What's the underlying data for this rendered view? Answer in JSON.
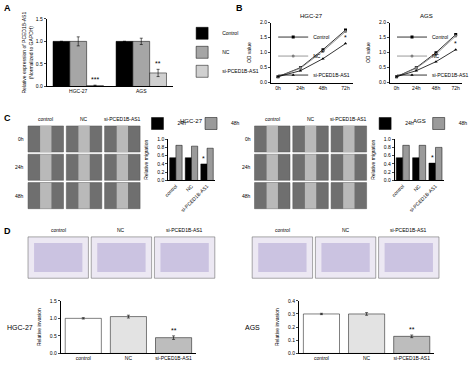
{
  "panel_labels": [
    "A",
    "B",
    "C",
    "D"
  ],
  "chart_data": [
    {
      "type": "bar",
      "categories": [
        "HGC-27",
        "AGS"
      ],
      "y_label": [
        "Relative expression of PCED1B-AS1",
        "(Normalized to GAPDH)"
      ],
      "ylim": [
        0,
        1.5
      ],
      "yticks": [
        {
          "value": 0,
          "label": "0.0"
        },
        {
          "value": 0.5,
          "label": "0.5"
        },
        {
          "value": 1,
          "label": "1.0"
        },
        {
          "value": 1.5,
          "label": "1.5"
        }
      ],
      "legend": "right",
      "series": [
        {
          "name": "Control",
          "color": "#000000",
          "values": [
            1.0,
            1.0
          ],
          "errors": [
            0.0,
            0.0
          ]
        },
        {
          "name": "NC",
          "color": "#a6a6a6",
          "values": [
            1.0,
            1.0
          ],
          "errors": [
            0.1,
            0.07
          ]
        },
        {
          "name": "si-PCED1B-AS1",
          "color": "#d0d0d0",
          "values": [
            0.02,
            0.3
          ],
          "errors": [
            0.01,
            0.08
          ]
        }
      ],
      "annotations": [
        {
          "category": "HGC-27",
          "series": "si-PCED1B-AS1",
          "text": "***"
        },
        {
          "category": "AGS",
          "series": "si-PCED1B-AS1",
          "text": "**"
        }
      ]
    },
    {
      "type": "line",
      "title": "HGC-27",
      "categories": [
        "0h",
        "24h",
        "48h",
        "72h"
      ],
      "y_label": "OD value",
      "ylim": [
        0,
        2
      ],
      "yticks": [
        {
          "value": 0,
          "label": "0.0"
        },
        {
          "value": 0.5,
          "label": "0.5"
        },
        {
          "value": 1,
          "label": "1.0"
        },
        {
          "value": 1.5,
          "label": "1.5"
        },
        {
          "value": 2,
          "label": "2.0"
        }
      ],
      "legend": "upper left",
      "series": [
        {
          "name": "Control",
          "color": "#000000",
          "marker": "square",
          "values": [
            0.2,
            0.5,
            1.1,
            1.75
          ]
        },
        {
          "name": "NC",
          "color": "#7f7f7f",
          "marker": "circle",
          "values": [
            0.2,
            0.48,
            1.05,
            1.7
          ]
        },
        {
          "name": "si-PCED1B-AS1",
          "color": "#000000",
          "marker": "triangle-up",
          "values": [
            0.2,
            0.4,
            0.8,
            1.3
          ]
        }
      ],
      "annotations": [
        {
          "category": "48h",
          "series": "si-PCED1B-AS1",
          "text": "*"
        },
        {
          "category": "72h",
          "series": "si-PCED1B-AS1",
          "text": "*"
        }
      ]
    },
    {
      "type": "line",
      "title": "AGS",
      "categories": [
        "0h",
        "24h",
        "48h",
        "72h"
      ],
      "y_label": "OD value",
      "ylim": [
        0,
        2
      ],
      "yticks": [
        {
          "value": 0,
          "label": "0.0"
        },
        {
          "value": 0.5,
          "label": "0.5"
        },
        {
          "value": 1,
          "label": "1.0"
        },
        {
          "value": 1.5,
          "label": "1.5"
        },
        {
          "value": 2,
          "label": "2.0"
        }
      ],
      "legend": "upper left",
      "series": [
        {
          "name": "Control",
          "color": "#000000",
          "marker": "square",
          "values": [
            0.2,
            0.5,
            1.0,
            1.6
          ]
        },
        {
          "name": "NC",
          "color": "#7f7f7f",
          "marker": "circle",
          "values": [
            0.2,
            0.48,
            0.95,
            1.55
          ]
        },
        {
          "name": "si-PCED1B-AS1",
          "color": "#000000",
          "marker": "triangle-up",
          "values": [
            0.2,
            0.4,
            0.7,
            1.1
          ]
        }
      ],
      "annotations": [
        {
          "category": "48h",
          "series": "si-PCED1B-AS1",
          "text": "*"
        },
        {
          "category": "72h",
          "series": "si-PCED1B-AS1",
          "text": "*"
        }
      ]
    },
    {
      "type": "bar",
      "title": "HGC-27",
      "categories": [
        "control",
        "NC",
        "si-PCED1B-AS1"
      ],
      "y_label": "Relative migration",
      "ylim": [
        0,
        1
      ],
      "yticks": [
        {
          "value": 0,
          "label": "0.0"
        },
        {
          "value": 0.2,
          "label": "0.2"
        },
        {
          "value": 0.4,
          "label": "0.4"
        },
        {
          "value": 0.6,
          "label": "0.6"
        },
        {
          "value": 0.8,
          "label": "0.8"
        },
        {
          "value": 1,
          "label": "1.0"
        }
      ],
      "legend": "top",
      "series": [
        {
          "name": "24h",
          "color": "#000000",
          "values": [
            0.55,
            0.55,
            0.4
          ]
        },
        {
          "name": "48h",
          "color": "#9a9a9a",
          "values": [
            0.85,
            0.83,
            0.78
          ]
        }
      ],
      "annotations": [
        {
          "category": "si-PCED1B-AS1",
          "series": "24h",
          "text": "*"
        }
      ]
    },
    {
      "type": "bar",
      "title": "AGS",
      "categories": [
        "control",
        "NC",
        "si-PCED1B-AS1"
      ],
      "y_label": "Relative migration",
      "ylim": [
        0,
        1
      ],
      "yticks": [
        {
          "value": 0,
          "label": "0.0"
        },
        {
          "value": 0.2,
          "label": "0.2"
        },
        {
          "value": 0.4,
          "label": "0.4"
        },
        {
          "value": 0.6,
          "label": "0.6"
        },
        {
          "value": 0.8,
          "label": "0.8"
        },
        {
          "value": 1,
          "label": "1.0"
        }
      ],
      "legend": "top",
      "series": [
        {
          "name": "24h",
          "color": "#000000",
          "values": [
            0.55,
            0.55,
            0.42
          ]
        },
        {
          "name": "48h",
          "color": "#9a9a9a",
          "values": [
            0.85,
            0.85,
            0.8
          ]
        }
      ],
      "annotations": [
        {
          "category": "si-PCED1B-AS1",
          "series": "24h",
          "text": "*"
        }
      ]
    },
    {
      "type": "bar",
      "title": "HGC-27",
      "categories": [
        "control",
        "NC",
        "si-PCED1B-AS1"
      ],
      "y_label": "Relative invasion",
      "ylim": [
        0,
        1.5
      ],
      "yticks": [
        {
          "value": 0,
          "label": "0.0"
        },
        {
          "value": 0.5,
          "label": "0.5"
        },
        {
          "value": 1,
          "label": "1.0"
        },
        {
          "value": 1.5,
          "label": "1.5"
        }
      ],
      "values": [
        1.0,
        1.05,
        0.45
      ],
      "errors": [
        0.02,
        0.04,
        0.05
      ],
      "colors": [
        "#ffffff",
        "#e3e3e3",
        "#bdbdbd"
      ],
      "annotations": [
        {
          "category": "si-PCED1B-AS1",
          "text": "**"
        }
      ]
    },
    {
      "type": "bar",
      "title": "AGS",
      "categories": [
        "control",
        "NC",
        "si-PCED1B-AS1"
      ],
      "y_label": "Relative invasion",
      "ylim": [
        0,
        0.4
      ],
      "yticks": [
        {
          "value": 0,
          "label": "0.0"
        },
        {
          "value": 0.1,
          "label": "0.1"
        },
        {
          "value": 0.2,
          "label": "0.2"
        },
        {
          "value": 0.3,
          "label": "0.3"
        },
        {
          "value": 0.4,
          "label": "0.4"
        }
      ],
      "values": [
        0.3,
        0.3,
        0.13
      ],
      "errors": [
        0.005,
        0.01,
        0.01
      ],
      "colors": [
        "#ffffff",
        "#e3e3e3",
        "#bdbdbd"
      ],
      "annotations": [
        {
          "category": "si-PCED1B-AS1",
          "text": "**"
        }
      ]
    }
  ],
  "image_panels": [
    {
      "columns": [
        "control",
        "NC",
        "si-PCED1B-AS1"
      ],
      "rows": [
        "0h",
        "24h",
        "48h"
      ]
    },
    {
      "columns": [
        "control",
        "NC",
        "si-PCED1B-AS1"
      ],
      "rows": [
        "0h",
        "24h",
        "48h"
      ]
    },
    {
      "columns": [
        "control",
        "NC",
        "si-PCED1B-AS1"
      ]
    },
    {
      "columns": [
        "control",
        "NC",
        "si-PCED1B-AS1"
      ]
    }
  ]
}
